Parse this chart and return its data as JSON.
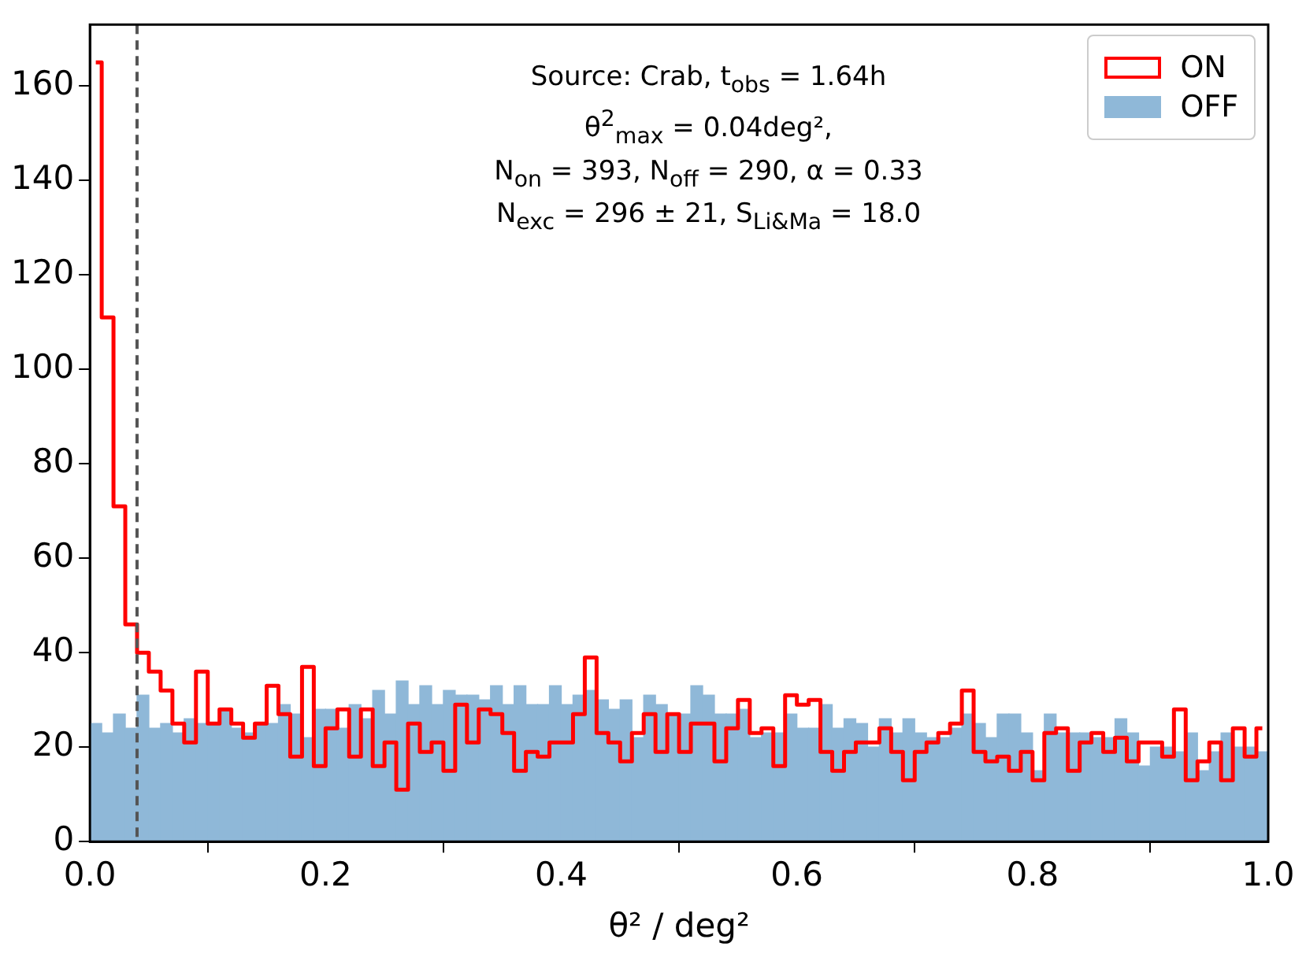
{
  "chart_data": {
    "type": "histogram",
    "xlabel": "θ² / deg²",
    "bins": [
      0,
      0.01,
      0.02,
      0.03,
      0.04,
      0.05,
      0.06,
      0.07,
      0.08,
      0.09,
      0.1,
      0.11,
      0.12,
      0.13,
      0.14,
      0.15,
      0.16,
      0.17,
      0.18,
      0.19,
      0.2,
      0.21,
      0.22,
      0.23,
      0.24,
      0.25,
      0.26,
      0.27,
      0.28,
      0.29,
      0.3,
      0.31,
      0.32,
      0.33,
      0.34,
      0.35,
      0.36,
      0.37,
      0.38,
      0.39,
      0.4,
      0.41,
      0.42,
      0.43,
      0.44,
      0.45,
      0.46,
      0.47,
      0.48,
      0.49,
      0.5,
      0.51,
      0.52,
      0.53,
      0.54,
      0.55,
      0.56,
      0.57,
      0.58,
      0.59,
      0.6,
      0.61,
      0.62,
      0.63,
      0.64,
      0.65,
      0.66,
      0.67,
      0.68,
      0.69,
      0.7,
      0.71,
      0.72,
      0.73,
      0.74,
      0.75,
      0.76,
      0.77,
      0.78,
      0.79,
      0.8,
      0.81,
      0.82,
      0.83,
      0.84,
      0.85,
      0.86,
      0.87,
      0.88,
      0.89,
      0.9,
      0.91,
      0.92,
      0.93,
      0.94,
      0.95,
      0.96,
      0.97,
      0.98,
      0.99,
      1
    ],
    "series": [
      {
        "name": "ON",
        "type": "step",
        "color": "#ff0000",
        "x": [
          0.005,
          0.015,
          0.025,
          0.035,
          0.045,
          0.055,
          0.065,
          0.075,
          0.085,
          0.095,
          0.105,
          0.115,
          0.125,
          0.135,
          0.145,
          0.155,
          0.165,
          0.175,
          0.185,
          0.195,
          0.205,
          0.215,
          0.225,
          0.235,
          0.245,
          0.255,
          0.265,
          0.275,
          0.285,
          0.295,
          0.305,
          0.315,
          0.325,
          0.335,
          0.345,
          0.355,
          0.365,
          0.375,
          0.385,
          0.395,
          0.405,
          0.415,
          0.425,
          0.435,
          0.445,
          0.455,
          0.465,
          0.475,
          0.485,
          0.495,
          0.505,
          0.515,
          0.525,
          0.535,
          0.545,
          0.555,
          0.565,
          0.575,
          0.585,
          0.595,
          0.605,
          0.615,
          0.625,
          0.635,
          0.645,
          0.655,
          0.665,
          0.675,
          0.685,
          0.695,
          0.705,
          0.715,
          0.725,
          0.735,
          0.745,
          0.755,
          0.765,
          0.775,
          0.785,
          0.795,
          0.805,
          0.815,
          0.825,
          0.835,
          0.845,
          0.855,
          0.865,
          0.875,
          0.885,
          0.895,
          0.905,
          0.915,
          0.925,
          0.935,
          0.945,
          0.955,
          0.965,
          0.975,
          0.985,
          0.995
        ],
        "values": [
          165,
          111,
          71,
          46,
          40,
          36,
          32,
          25,
          21,
          36,
          25,
          28,
          25,
          22,
          25,
          33,
          27,
          18,
          37,
          16,
          24,
          28,
          18,
          28,
          16,
          21,
          11,
          25,
          19,
          21,
          15,
          29,
          21,
          28,
          27,
          23,
          15,
          19,
          18,
          21,
          21,
          27,
          39,
          23,
          21,
          17,
          23,
          27,
          19,
          27,
          19,
          25,
          25,
          17,
          24,
          30,
          23,
          24,
          16,
          31,
          29,
          30,
          19,
          15,
          19,
          21,
          21,
          24,
          19,
          13,
          19,
          21,
          23,
          25,
          32,
          19,
          17,
          18,
          15,
          19,
          13,
          23,
          24,
          15,
          21,
          23,
          19,
          22,
          17,
          21,
          21,
          18,
          28,
          13,
          17,
          21,
          13,
          24,
          18,
          24
        ]
      },
      {
        "name": "OFF",
        "color": "#8fb8d8",
        "values": [
          25,
          23,
          27,
          24,
          31,
          24,
          25,
          23,
          26,
          25,
          25,
          28,
          24,
          23,
          25,
          25,
          29,
          27,
          22,
          28,
          28,
          24,
          29,
          26,
          32,
          27,
          34,
          29,
          33,
          29,
          32,
          31,
          31,
          30,
          33,
          29,
          33,
          29,
          29,
          33,
          29,
          31,
          32,
          30,
          28,
          30,
          22,
          31,
          29,
          27,
          27,
          33,
          31,
          27,
          27,
          28,
          22,
          23,
          23,
          27,
          24,
          24,
          29,
          24,
          26,
          25,
          20,
          26,
          23,
          26,
          23,
          22,
          22,
          24,
          27,
          25,
          22,
          27,
          27,
          23,
          15,
          27,
          23,
          23,
          23,
          22,
          22,
          26,
          23,
          16,
          20,
          20,
          19,
          23,
          15,
          19,
          23,
          20,
          20,
          19
        ]
      }
    ],
    "xlim": [
      0,
      1
    ],
    "xticks": [
      {
        "value": 0,
        "label": "0.0"
      },
      0.2,
      0.4,
      0.6,
      0.8,
      {
        "value": 1,
        "label": "1.0"
      }
    ],
    "ylim": [
      0,
      173
    ],
    "yticks": [
      0,
      20,
      40,
      60,
      80,
      100,
      120,
      140,
      160
    ],
    "ref_lines": [
      {
        "axis": "x",
        "value": 0.04,
        "color": "#555555",
        "line_style": "dashed"
      }
    ],
    "annotations": [
      "Source: Crab, t$_{obs}$ = 1.64h",
      "θ$^{2}$$_{max}$ = 0.04deg²,",
      "N$_{on}$ = 393, N$_{off}$ = 290, α = 0.33",
      "N$_{exc}$ = 296 ± 21, S$_{Li&Ma}$ = 18.0"
    ],
    "legend": "top right",
    "grid": false
  }
}
